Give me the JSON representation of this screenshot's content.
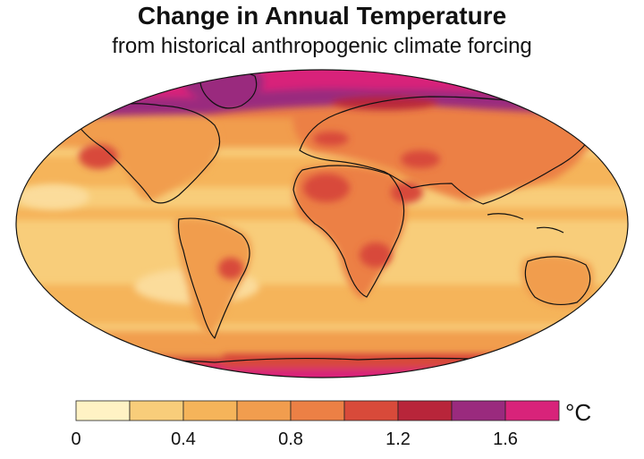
{
  "title": "Change in Annual Temperature",
  "subtitle": "from historical anthropogenic climate forcing",
  "colorbar": {
    "unit": "°C",
    "min": 0,
    "max": 1.8,
    "bins": [
      {
        "from": 0.0,
        "to": 0.2,
        "color": "#fff2c4"
      },
      {
        "from": 0.2,
        "to": 0.4,
        "color": "#f8cd7a"
      },
      {
        "from": 0.4,
        "to": 0.6,
        "color": "#f5b45a"
      },
      {
        "from": 0.6,
        "to": 0.8,
        "color": "#f19d4e"
      },
      {
        "from": 0.8,
        "to": 1.0,
        "color": "#ec8045"
      },
      {
        "from": 1.0,
        "to": 1.2,
        "color": "#d84a3a"
      },
      {
        "from": 1.2,
        "to": 1.4,
        "color": "#b8253a"
      },
      {
        "from": 1.4,
        "to": 1.6,
        "color": "#9a2a7e"
      },
      {
        "from": 1.6,
        "to": 1.8,
        "color": "#d8237a"
      }
    ],
    "ticks": [
      {
        "value": 0,
        "label": "0"
      },
      {
        "value": 0.4,
        "label": "0.4"
      },
      {
        "value": 0.8,
        "label": "0.8"
      },
      {
        "value": 1.2,
        "label": "1.2"
      },
      {
        "value": 1.6,
        "label": "1.6"
      }
    ]
  }
}
